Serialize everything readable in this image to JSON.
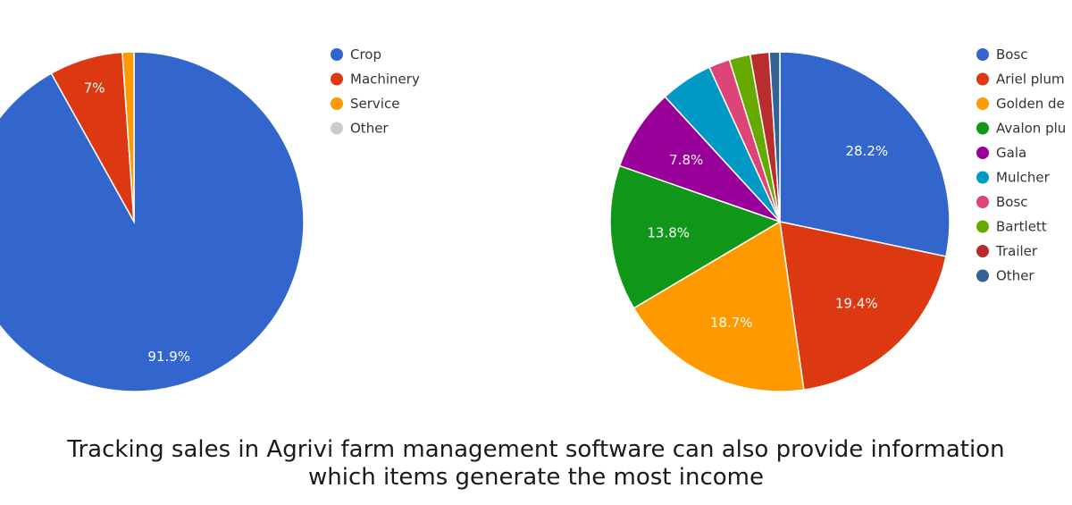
{
  "chart_data": [
    {
      "type": "pie",
      "title": "",
      "slices": [
        {
          "label": "Crop",
          "value": 91.9,
          "color": "#3366cc"
        },
        {
          "label": "Machinery",
          "value": 7.0,
          "color": "#dc3912"
        },
        {
          "label": "Service",
          "value": 1.1,
          "color": "#ff9900"
        },
        {
          "label": "Other",
          "value": 0.0,
          "color": "#cccccc"
        }
      ],
      "data_labels": [
        "91.9%",
        "7%",
        "",
        ""
      ],
      "legend": "right"
    },
    {
      "type": "pie",
      "title": "",
      "slices": [
        {
          "label": "Bosc",
          "value": 28.2,
          "color": "#3366cc"
        },
        {
          "label": "Ariel plum",
          "value": 19.4,
          "color": "#dc3912"
        },
        {
          "label": "Golden de",
          "value": 18.7,
          "color": "#ff9900"
        },
        {
          "label": "Avalon plu",
          "value": 13.8,
          "color": "#109618"
        },
        {
          "label": "Gala",
          "value": 7.8,
          "color": "#990099"
        },
        {
          "label": "Mulcher",
          "value": 5.0,
          "color": "#0099c6"
        },
        {
          "label": "Bosc",
          "value": 2.0,
          "color": "#dd4477"
        },
        {
          "label": "Bartlett",
          "value": 2.0,
          "color": "#66aa00"
        },
        {
          "label": "Trailer",
          "value": 1.8,
          "color": "#b82e2e"
        },
        {
          "label": "Other",
          "value": 1.0,
          "color": "#316395"
        }
      ],
      "data_labels": [
        "28.2%",
        "19.4%",
        "18.7%",
        "13.8%",
        "7.8%",
        "",
        "",
        "",
        "",
        ""
      ],
      "legend": "right"
    }
  ],
  "caption": {
    "line1": "Tracking sales in Agrivi farm management software can also provide information",
    "line2": "which items generate the most income"
  }
}
